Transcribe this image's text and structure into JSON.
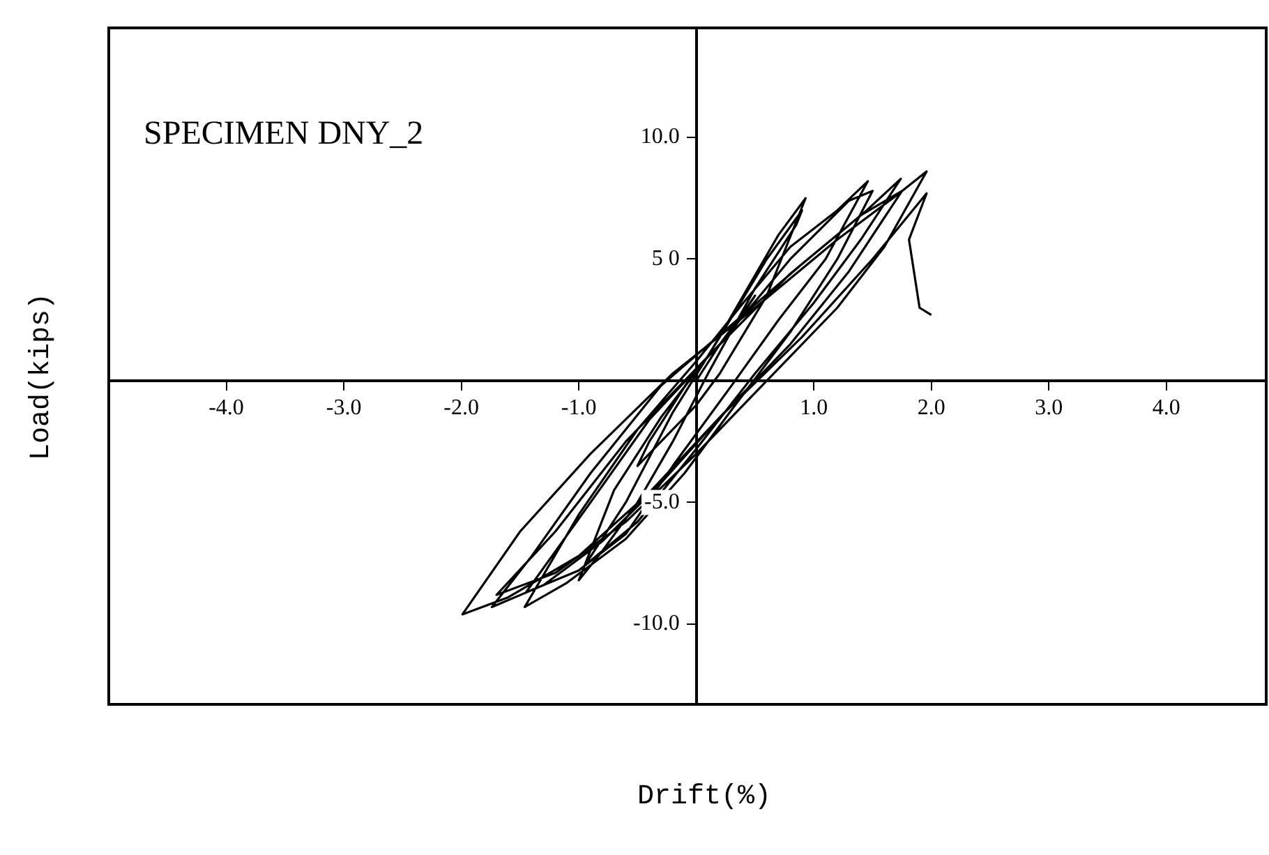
{
  "chart_data": {
    "type": "line",
    "title": "SPECIMEN DNY_2",
    "xlabel": "Drift(%)",
    "ylabel": "Load(kips)",
    "xlim": [
      -5.0,
      4.85
    ],
    "ylim": [
      -13.3,
      14.5
    ],
    "xticks": [
      {
        "value": -4,
        "label": "-4.0"
      },
      {
        "value": -3,
        "label": "-3.0"
      },
      {
        "value": -2,
        "label": "-2.0"
      },
      {
        "value": -1,
        "label": "-1.0"
      },
      {
        "value": 1,
        "label": "1.0"
      },
      {
        "value": 2,
        "label": "2.0"
      },
      {
        "value": 3,
        "label": "3.0"
      },
      {
        "value": 4,
        "label": "4.0"
      }
    ],
    "yticks": [
      {
        "value": -10,
        "label": "-10.0"
      },
      {
        "value": -5,
        "label": "-5.0"
      },
      {
        "value": 5,
        "label": "5 0"
      },
      {
        "value": 10,
        "label": "10.0"
      }
    ],
    "grid": false,
    "legend": false,
    "marker": "none",
    "line_style": "solid",
    "series": [
      {
        "color": "#000000",
        "x": [
          0,
          0.2,
          0.4,
          0.5,
          0.3,
          0,
          -0.2,
          -0.4,
          -0.5,
          -0.3,
          0,
          0.2,
          0.6,
          0.93,
          0.7,
          0.4,
          0.1,
          -0.3,
          -0.7,
          -1.0,
          -0.8,
          -0.5,
          -0.2,
          0.1,
          0.5,
          0.85,
          0.9,
          0.6,
          0.2,
          -0.2,
          -0.6,
          -0.95,
          -0.6,
          -0.2,
          0.3,
          0.7,
          1.1,
          1.46,
          1.2,
          0.8,
          0.4,
          0,
          -0.5,
          -1.0,
          -1.46,
          -1.1,
          -0.6,
          -0.1,
          0.3,
          0.8,
          1.2,
          1.5,
          1.3,
          0.8,
          0.2,
          -0.4,
          -0.9,
          -1.45,
          -1.0,
          -0.5,
          0,
          0.5,
          1.0,
          1.4,
          1.74,
          1.45,
          0.9,
          0.3,
          -0.3,
          -0.9,
          -1.4,
          -1.74,
          -1.3,
          -0.8,
          -0.3,
          0.2,
          0.8,
          1.3,
          1.75,
          1.4,
          0.8,
          0.1,
          -0.6,
          -1.2,
          -1.7,
          -1.2,
          -0.6,
          0,
          0.6,
          1.2,
          1.6,
          1.96,
          1.7,
          1.2,
          0.5,
          -0.2,
          -0.9,
          -1.5,
          -1.99,
          -1.6,
          -1.0,
          -0.4,
          0.2,
          0.9,
          1.5,
          1.96,
          1.81,
          1.9,
          2.0
        ],
        "values": [
          0,
          1.5,
          2.8,
          3.5,
          2.0,
          0.5,
          -1,
          -2.5,
          -3.5,
          -2.5,
          -1,
          0.3,
          3.5,
          7.5,
          6.0,
          3.5,
          1.0,
          -1.5,
          -4.5,
          -8.2,
          -7.0,
          -5,
          -2.5,
          0.3,
          3.8,
          6.4,
          7.0,
          5.0,
          1.8,
          -1.3,
          -5,
          -7.6,
          -6.3,
          -3.5,
          -0.2,
          2.5,
          5.0,
          8.2,
          7.0,
          5.5,
          3.2,
          0.8,
          -2,
          -5.5,
          -9.3,
          -8.3,
          -6.5,
          -3.8,
          -1.2,
          2.0,
          5.0,
          7.8,
          7.4,
          5.0,
          1.5,
          -1.6,
          -5,
          -8.7,
          -7.8,
          -5.8,
          -2.8,
          0.3,
          3.2,
          5.8,
          8.3,
          7.0,
          4.8,
          2.3,
          -0.2,
          -3.8,
          -7.2,
          -9.3,
          -8.4,
          -6.6,
          -4.2,
          -1.5,
          1.5,
          4.5,
          7.8,
          6.8,
          4.4,
          1.0,
          -2.5,
          -6.2,
          -8.8,
          -7.9,
          -5.8,
          -3.0,
          0.0,
          3.0,
          5.5,
          8.6,
          7.6,
          5.8,
          3.0,
          0.3,
          -3.0,
          -6.2,
          -9.6,
          -8.9,
          -7.2,
          -4.6,
          -1.5,
          1.8,
          5.0,
          7.7,
          5.8,
          3.0,
          2.7
        ]
      }
    ]
  }
}
